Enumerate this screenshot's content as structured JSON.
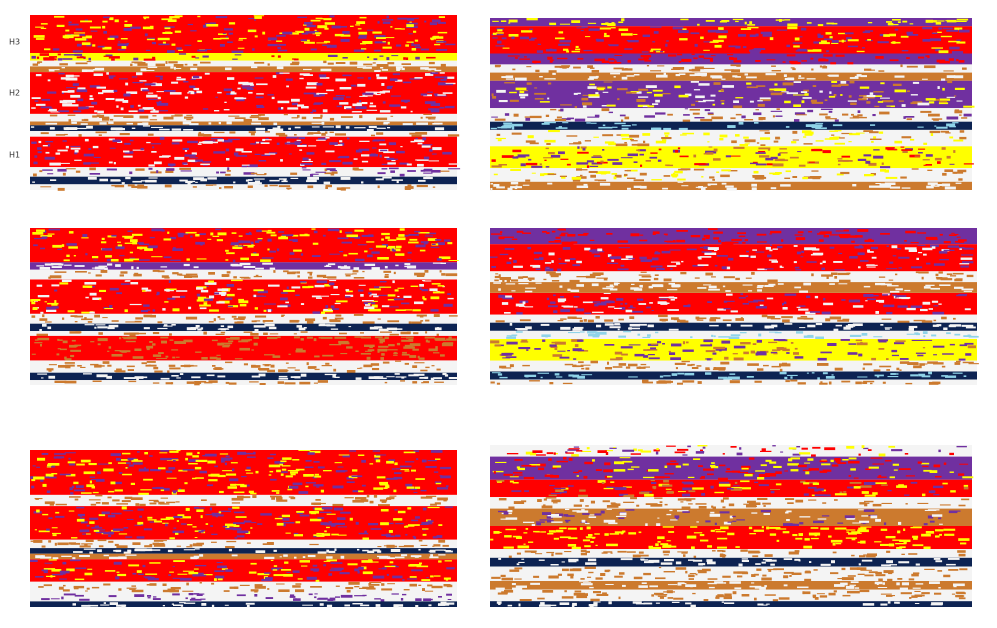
{
  "row_labels": [
    "H3",
    "H2",
    "H1"
  ]
}
